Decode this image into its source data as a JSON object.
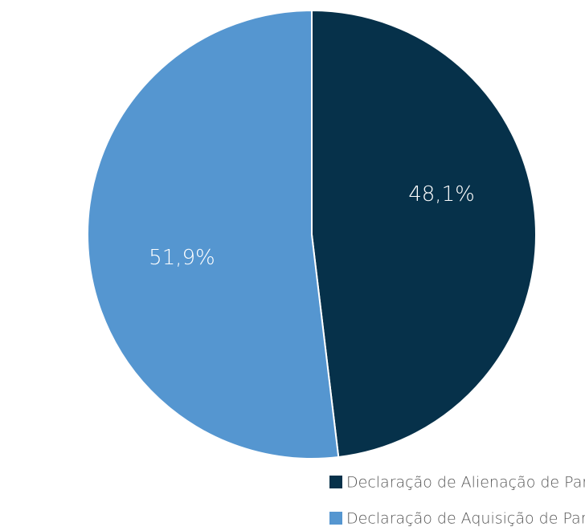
{
  "chart_data": {
    "type": "pie",
    "categories": [
      "Declaração de Alienação de Participação Acionária Relevante",
      "Declaração de Aquisição de Participação Acionária Relevante"
    ],
    "values": [
      48.1,
      51.9
    ],
    "value_labels": [
      "48,1%",
      "51,9%"
    ],
    "colors": [
      "#06314a",
      "#5596d0"
    ],
    "legend": "bottom"
  }
}
